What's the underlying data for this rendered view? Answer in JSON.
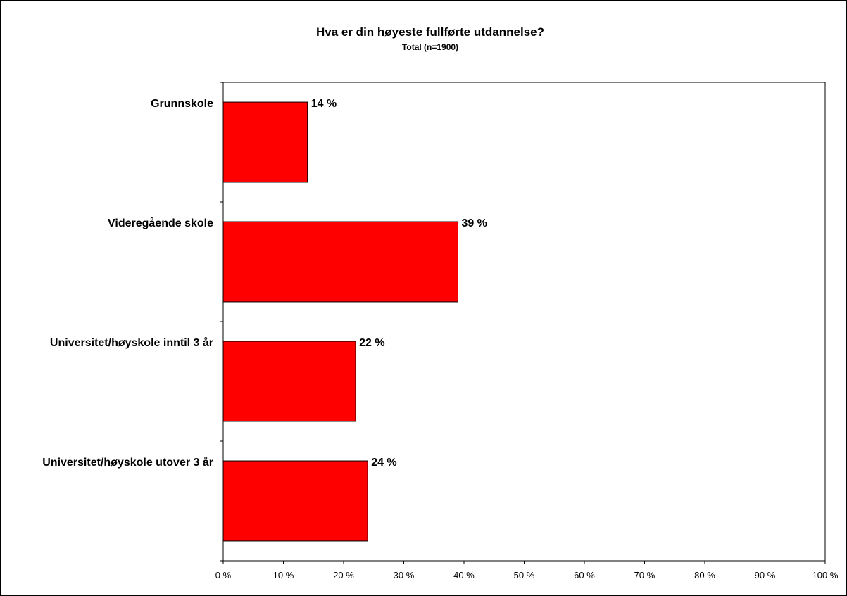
{
  "chart_data": {
    "type": "bar",
    "orientation": "horizontal",
    "title": "Hva er din høyeste fullførte utdannelse?",
    "subtitle": "Total (n=1900)",
    "xlabel": "",
    "ylabel": "",
    "categories": [
      "Grunnskole",
      "Videregående skole",
      "Universitet/høyskole inntil 3 år",
      "Universitet/høyskole utover 3 år"
    ],
    "values": [
      14,
      39,
      22,
      24
    ],
    "value_labels": [
      "14 %",
      "39 %",
      "22 %",
      "24 %"
    ],
    "xlim": [
      0,
      100
    ],
    "x_ticks": [
      0,
      10,
      20,
      30,
      40,
      50,
      60,
      70,
      80,
      90,
      100
    ],
    "x_tick_labels": [
      "0 %",
      "10 %",
      "20 %",
      "30 %",
      "40 %",
      "50 %",
      "60 %",
      "70 %",
      "80 %",
      "90 %",
      "100 %"
    ],
    "grid": false,
    "legend": "none",
    "colors": {
      "bar": "#ff0000",
      "bar_stroke": "#000000",
      "axis": "#000000",
      "text": "#000000"
    }
  }
}
